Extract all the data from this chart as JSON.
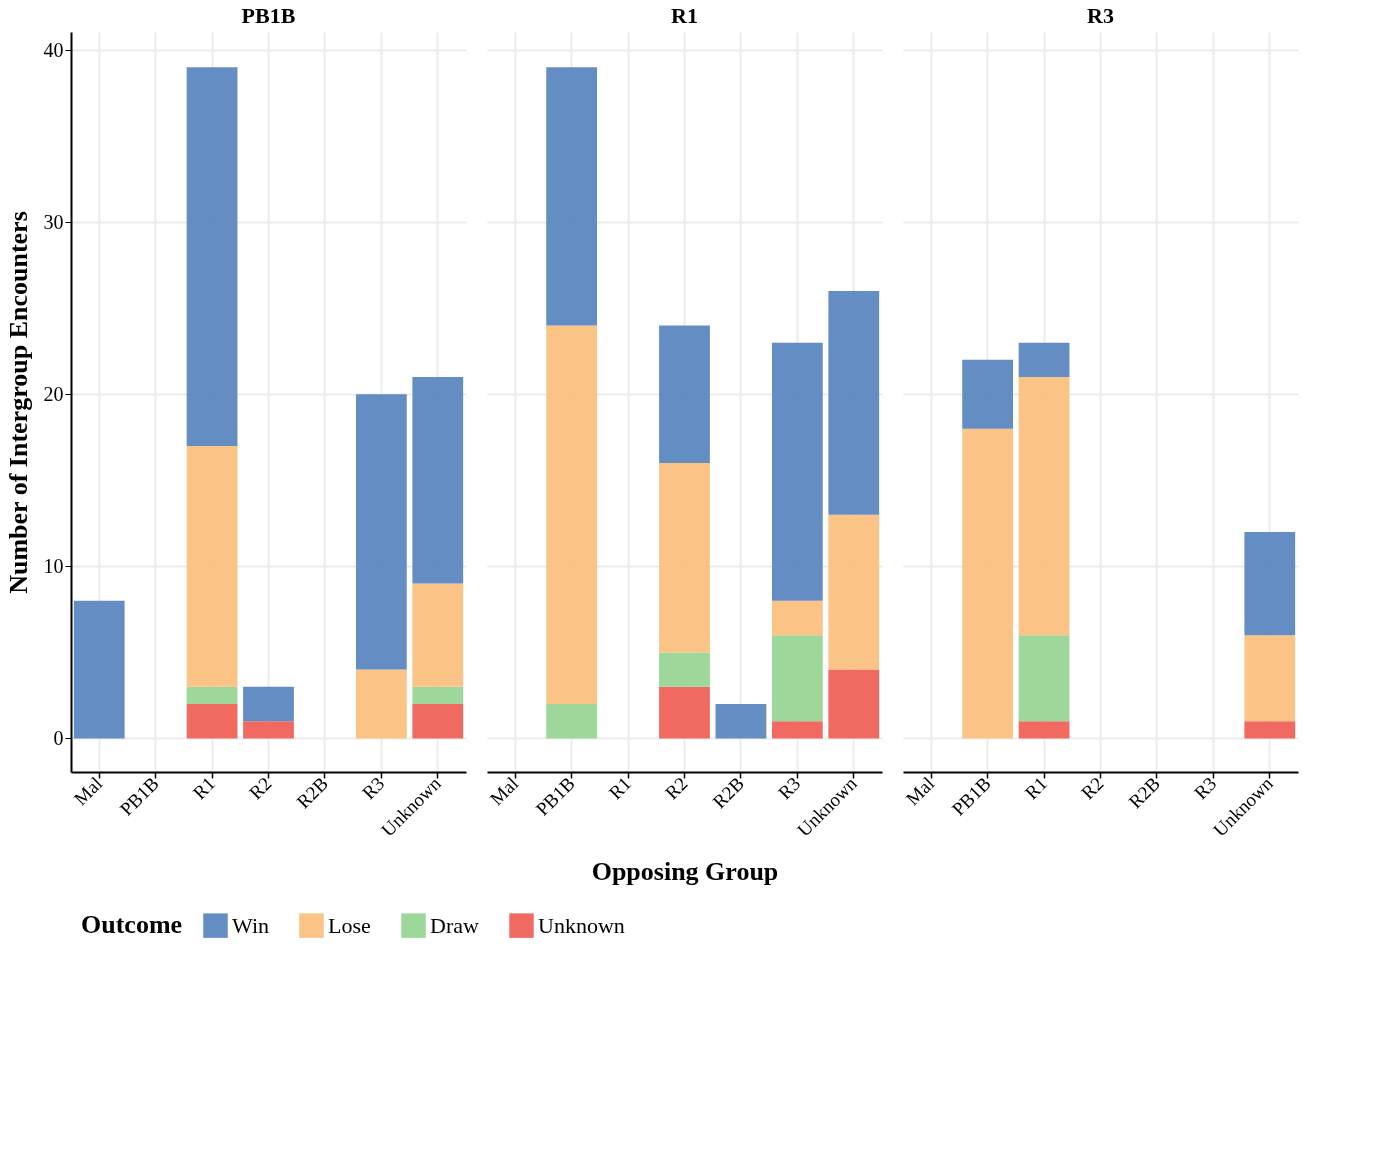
{
  "chart_data": [
    {
      "type": "bar",
      "title": "PB1B",
      "ylabel": "Number of Intergroup Encounters",
      "categories": [
        "Mal",
        "PB1B",
        "R1",
        "R2",
        "R2B",
        "R3",
        "Unknown"
      ],
      "stacked": true,
      "ylim": [
        -1.95,
        41.05
      ],
      "yticks": [
        0,
        10,
        20,
        30,
        40
      ],
      "grid": true,
      "legend": "bottom",
      "legend_title": "Outcome",
      "series": [
        {
          "name": "Unknown",
          "color": "#f0625a",
          "values": [
            null,
            null,
            2,
            1,
            null,
            null,
            2
          ]
        },
        {
          "name": "Draw",
          "color": "#98d595",
          "values": [
            null,
            null,
            1,
            null,
            null,
            null,
            1
          ]
        },
        {
          "name": "Lose",
          "color": "#fbc07e",
          "values": [
            null,
            null,
            14,
            null,
            null,
            4,
            6
          ]
        },
        {
          "name": "Win",
          "color": "#5b87c0",
          "values": [
            8,
            null,
            22,
            2,
            null,
            16,
            12
          ]
        }
      ]
    },
    {
      "type": "bar",
      "title": "R1",
      "xlabel": "Opposing Group",
      "categories": [
        "Mal",
        "PB1B",
        "R1",
        "R2",
        "R2B",
        "R3",
        "Unknown"
      ],
      "stacked": true,
      "ylim": [
        -1.95,
        41.05
      ],
      "yticks": [
        0,
        10,
        20,
        30,
        40
      ],
      "grid": true,
      "tick_labels": "x",
      "series": [
        {
          "color": "#f0625a",
          "values": [
            null,
            null,
            null,
            3,
            null,
            1,
            4
          ]
        },
        {
          "color": "#98d595",
          "values": [
            null,
            2,
            null,
            2,
            null,
            5,
            null
          ]
        },
        {
          "color": "#fbc07e",
          "values": [
            null,
            22,
            null,
            11,
            null,
            2,
            9
          ]
        },
        {
          "color": "#5b87c0",
          "values": [
            null,
            15,
            null,
            8,
            2,
            15,
            13
          ]
        }
      ]
    },
    {
      "type": "bar",
      "title": "R3",
      "categories": [
        "Mal",
        "PB1B",
        "R1",
        "R2",
        "R2B",
        "R3",
        "Unknown"
      ],
      "stacked": true,
      "ylim": [
        -1.95,
        41.05
      ],
      "yticks": [
        0,
        10,
        20,
        30,
        40
      ],
      "grid": true,
      "tick_labels": "x",
      "series": [
        {
          "color": "#f0625a",
          "values": [
            null,
            null,
            1,
            null,
            null,
            null,
            1
          ]
        },
        {
          "color": "#98d595",
          "values": [
            null,
            null,
            5,
            null,
            null,
            null,
            null
          ]
        },
        {
          "color": "#fbc07e",
          "values": [
            null,
            18,
            15,
            null,
            null,
            null,
            5
          ]
        },
        {
          "color": "#5b87c0",
          "values": [
            null,
            4,
            2,
            null,
            null,
            null,
            6
          ]
        }
      ]
    }
  ]
}
